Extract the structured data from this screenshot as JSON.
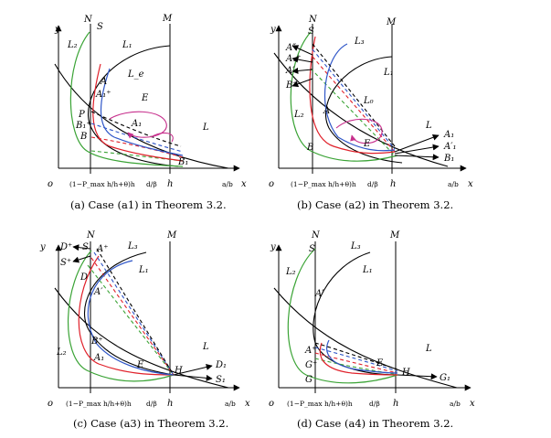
{
  "colors": {
    "green": "#3aa335",
    "red": "#e0202a",
    "blue": "#2f56c8",
    "magenta": "#c72f8c",
    "black": "#000000"
  },
  "panels": [
    {
      "id": "a1",
      "caption": "(a) Case (a1) in Theorem 3.2.",
      "axis": {
        "y": "y",
        "x": "x",
        "origin": "o"
      },
      "xticks": [
        "(1−P_max h/h+θ)h",
        "d/β",
        "h",
        "a/b"
      ],
      "vlines": [
        "N",
        "S",
        "M"
      ],
      "labels": [
        "L₂",
        "L₁",
        "L_e",
        "A",
        "A₁⁺",
        "E",
        "P",
        "B₁⁺",
        "B",
        "A₁",
        "L",
        "B₁"
      ]
    },
    {
      "id": "a2",
      "caption": "(b) Case (a2) in Theorem 3.2.",
      "axis": {
        "y": "y",
        "x": "x",
        "origin": "o"
      },
      "xticks": [
        "(1−P_max h/h+θ)h",
        "d/β",
        "h",
        "a/b"
      ],
      "vlines": [
        "N",
        "S",
        "M"
      ],
      "labels": [
        "A″",
        "A₁⁺",
        "A′",
        "B⁺",
        "L₃",
        "L₁",
        "L₀",
        "L₂",
        "A",
        "B",
        "E",
        "L",
        "A₁",
        "A′₁",
        "B₁"
      ]
    },
    {
      "id": "a3",
      "caption": "(c) Case (a3) in Theorem 3.2.",
      "axis": {
        "y": "y",
        "x": "x",
        "origin": "o"
      },
      "xticks": [
        "(1−P_max h/h+θ)h",
        "d/β",
        "h",
        "a/b"
      ],
      "vlines": [
        "N",
        "S",
        "M"
      ],
      "labels": [
        "D⁺",
        "S",
        "A⁺",
        "S⁺",
        "D",
        "L₃",
        "L₁",
        "A′",
        "B⁺",
        "L₂",
        "A₁",
        "E",
        "H",
        "L",
        "D₁",
        "S₁"
      ]
    },
    {
      "id": "a4",
      "caption": "(d) Case (a4) in Theorem 3.2.",
      "axis": {
        "y": "y",
        "x": "x",
        "origin": "o"
      },
      "xticks": [
        "(1−P_max h/h+θ)h",
        "d/β",
        "h",
        "a/b"
      ],
      "vlines": [
        "N",
        "S",
        "M"
      ],
      "labels": [
        "L₂",
        "L₃",
        "L₁",
        "A′",
        "A⁺",
        "G⁺",
        "G",
        "E",
        "H",
        "L",
        "G₁"
      ]
    }
  ]
}
